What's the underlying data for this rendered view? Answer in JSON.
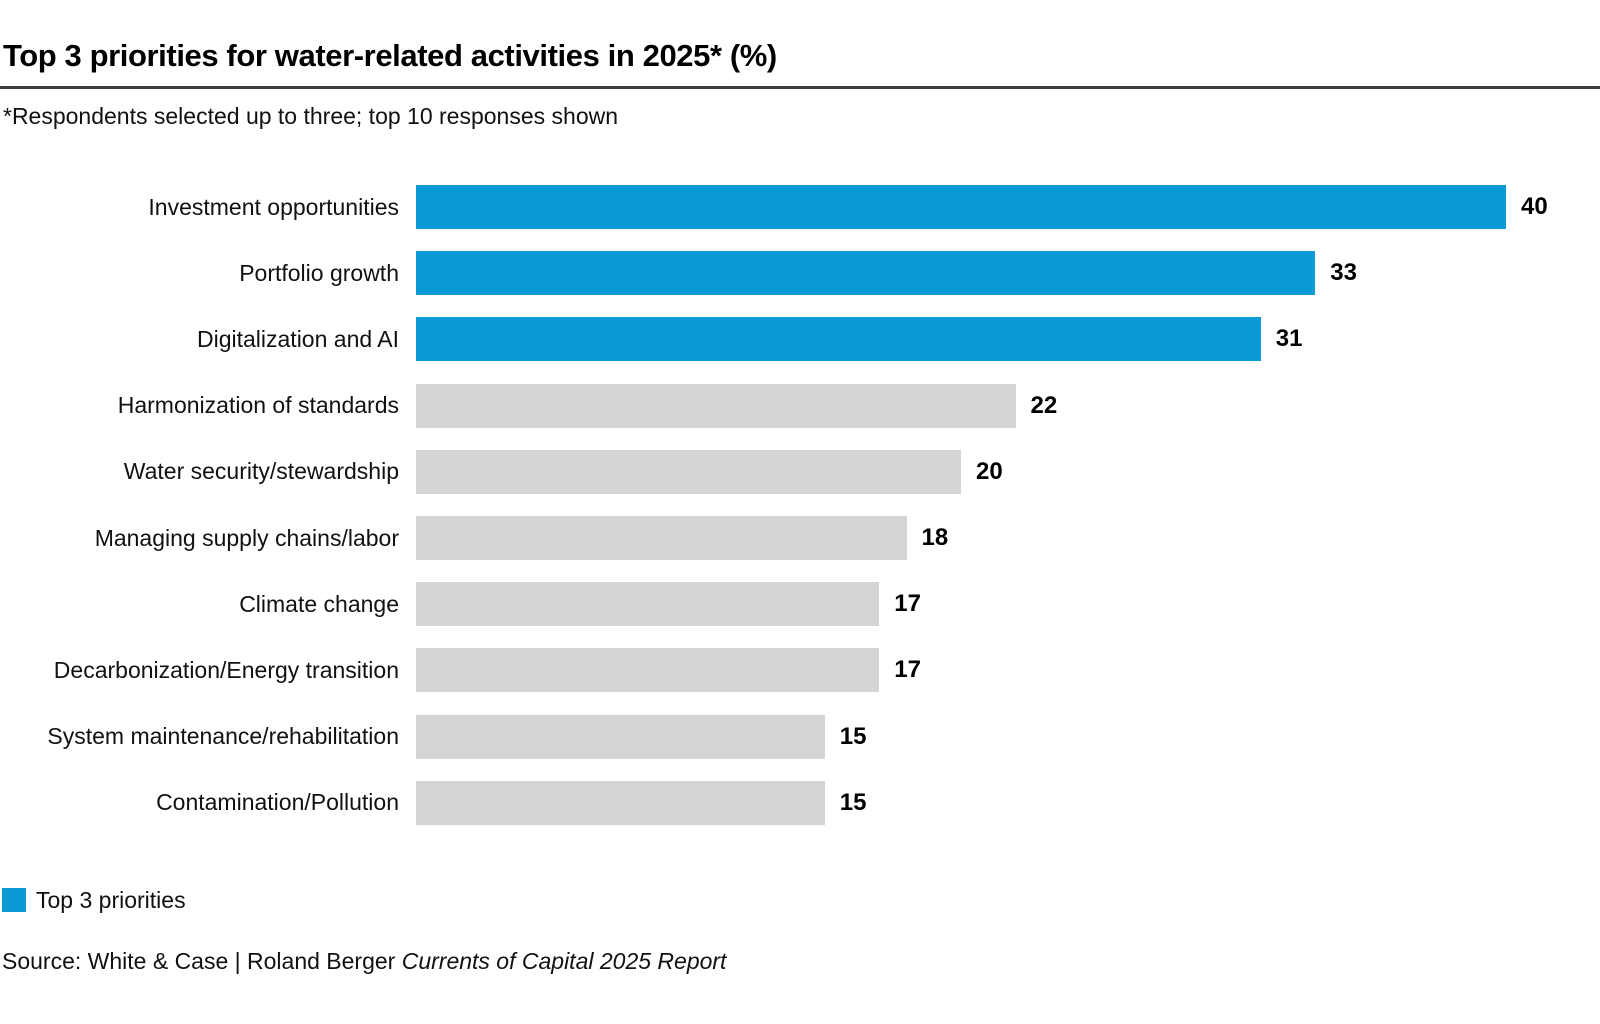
{
  "header": {
    "title": "Top 3 priorities for water-related activities in 2025* (%)",
    "subtitle": "*Respondents selected up to three; top 10 responses shown"
  },
  "chart_data": {
    "type": "bar",
    "orientation": "horizontal",
    "title": "Top 3 priorities for water-related activities in 2025* (%)",
    "footnote": "*Respondents selected up to three; top 10 responses shown",
    "categories": [
      "Investment opportunities",
      "Portfolio growth",
      "Digitalization and AI",
      "Harmonization of standards",
      "Water security/stewardship",
      "Managing supply chains/labor",
      "Climate change",
      "Decarbonization/Energy transition",
      "System maintenance/rehabilitation",
      "Contamination/Pollution"
    ],
    "values": [
      40,
      33,
      31,
      22,
      20,
      18,
      17,
      17,
      15,
      15
    ],
    "highlight_count": 3,
    "colors": {
      "top3": "#0A9AD6",
      "other": "#D4D4D4"
    },
    "xlim": [
      0,
      40
    ],
    "value_labels": true,
    "grid": false,
    "legend_position": "bottom-left"
  },
  "legend": {
    "label": "Top 3 priorities",
    "swatch_color": "#0A9AD6"
  },
  "source": {
    "prefix": "Source: White & Case | Roland Berger ",
    "italic": "Currents of Capital 2025 Report"
  }
}
